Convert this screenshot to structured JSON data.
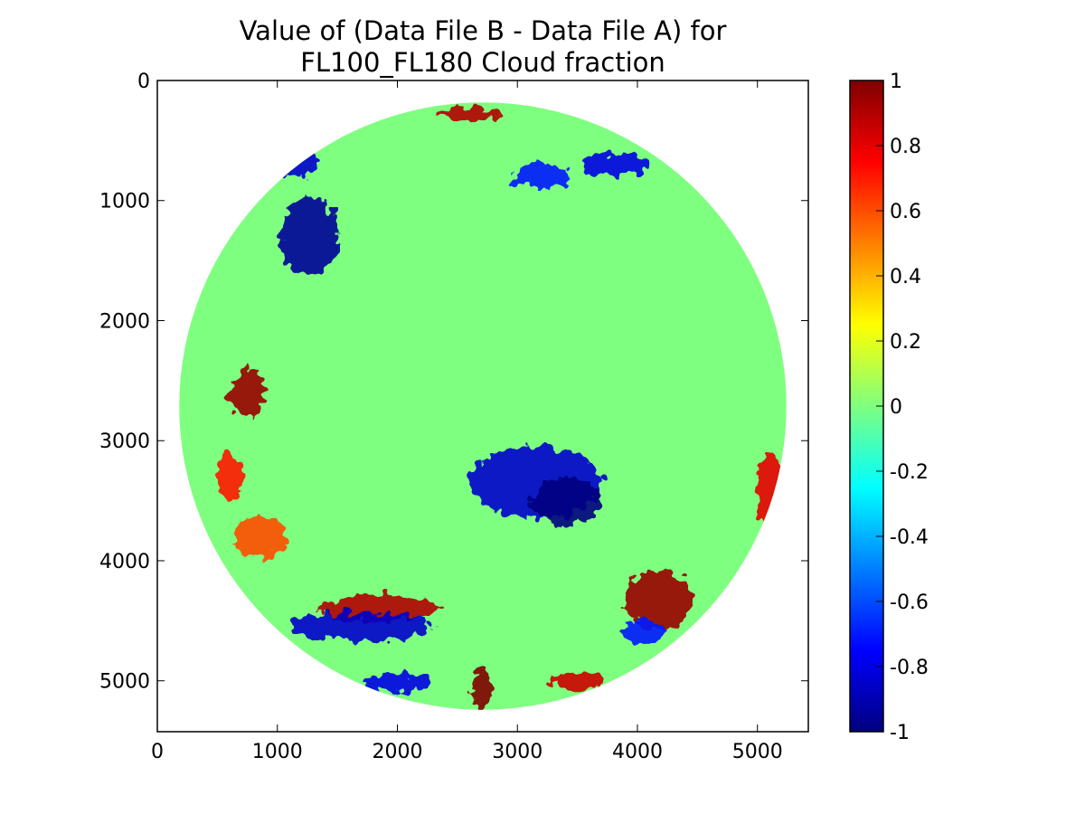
{
  "chart_data": {
    "type": "heatmap",
    "title_line1": "Value of (Data File B - Data File A) for",
    "title_line2": "FL100_FL180 Cloud fraction",
    "xlabel": "",
    "ylabel": "",
    "xlim": [
      0,
      5424
    ],
    "ylim": [
      5424,
      0
    ],
    "x_ticks": [
      0,
      1000,
      2000,
      3000,
      4000,
      5000
    ],
    "y_ticks": [
      0,
      1000,
      2000,
      3000,
      4000,
      5000
    ],
    "x_tick_labels": [
      "0",
      "1000",
      "2000",
      "3000",
      "4000",
      "5000"
    ],
    "y_tick_labels": [
      "0",
      "1000",
      "2000",
      "3000",
      "4000",
      "5000"
    ],
    "disk": {
      "center": [
        2712,
        2712
      ],
      "radius": 2530
    },
    "background_value": 0,
    "colorbar": {
      "min": -1,
      "max": 1,
      "ticks": [
        1,
        0.8,
        0.6,
        0.4,
        0.2,
        0,
        -0.2,
        -0.4,
        -0.6,
        -0.8,
        -1
      ],
      "tick_labels": [
        "1",
        "0.8",
        "0.6",
        "0.4",
        "0.2",
        "0",
        "-0.2",
        "-0.4",
        "-0.6",
        "-0.8",
        "-1"
      ],
      "colormap": "jet",
      "stops": [
        "#00007f",
        "#0000ff",
        "#007fff",
        "#00ffff",
        "#7fff7f",
        "#ffff00",
        "#ff7f00",
        "#ff0000",
        "#7f0000"
      ]
    },
    "regions": [
      {
        "name": "northwest-negative-patch",
        "center": [
          1270,
          1300
        ],
        "radii": [
          250,
          330
        ],
        "value": -0.95
      },
      {
        "name": "northwest-negative-arc",
        "center": [
          1150,
          700
        ],
        "radii": [
          200,
          120
        ],
        "value": -0.85
      },
      {
        "name": "north-positive-rim",
        "center": [
          2600,
          280
        ],
        "radii": [
          250,
          60
        ],
        "value": 0.9
      },
      {
        "name": "north-negative-band",
        "center": [
          3200,
          800
        ],
        "radii": [
          250,
          100
        ],
        "value": -0.7
      },
      {
        "name": "northeast-negative-streak",
        "center": [
          3800,
          700
        ],
        "radii": [
          280,
          90
        ],
        "value": -0.8
      },
      {
        "name": "west-positive-patch",
        "center": [
          750,
          2600
        ],
        "radii": [
          150,
          200
        ],
        "value": 0.95
      },
      {
        "name": "central-negative-streaks",
        "center": [
          3150,
          3350
        ],
        "radii": [
          550,
          300
        ],
        "value": -0.85
      },
      {
        "name": "central-negative-core",
        "center": [
          3400,
          3500
        ],
        "radii": [
          280,
          200
        ],
        "value": -1
      },
      {
        "name": "southeast-positive-patch",
        "center": [
          4180,
          4320
        ],
        "radii": [
          280,
          250
        ],
        "value": 0.95
      },
      {
        "name": "southeast-negative-fringe",
        "center": [
          4050,
          4600
        ],
        "radii": [
          200,
          100
        ],
        "value": -0.7
      },
      {
        "name": "southwest-positive-band",
        "center": [
          1850,
          4400
        ],
        "radii": [
          500,
          110
        ],
        "value": 0.9
      },
      {
        "name": "southwest-negative-band",
        "center": [
          1700,
          4550
        ],
        "radii": [
          600,
          120
        ],
        "value": -0.85
      },
      {
        "name": "south-positive-spot",
        "center": [
          2700,
          5080
        ],
        "radii": [
          80,
          180
        ],
        "value": 1
      },
      {
        "name": "south-negative-spot",
        "center": [
          2000,
          5020
        ],
        "radii": [
          260,
          80
        ],
        "value": -0.8
      },
      {
        "name": "southeast-positive-rim",
        "center": [
          3500,
          5000
        ],
        "radii": [
          220,
          70
        ],
        "value": 0.85
      },
      {
        "name": "east-positive-rim",
        "center": [
          5100,
          3400
        ],
        "radii": [
          100,
          300
        ],
        "value": 0.8
      },
      {
        "name": "west-positive-rim",
        "center": [
          600,
          3300
        ],
        "radii": [
          120,
          200
        ],
        "value": 0.7
      },
      {
        "name": "southwest-speckle",
        "center": [
          850,
          3800
        ],
        "radii": [
          220,
          180
        ],
        "value": 0.6
      }
    ]
  }
}
